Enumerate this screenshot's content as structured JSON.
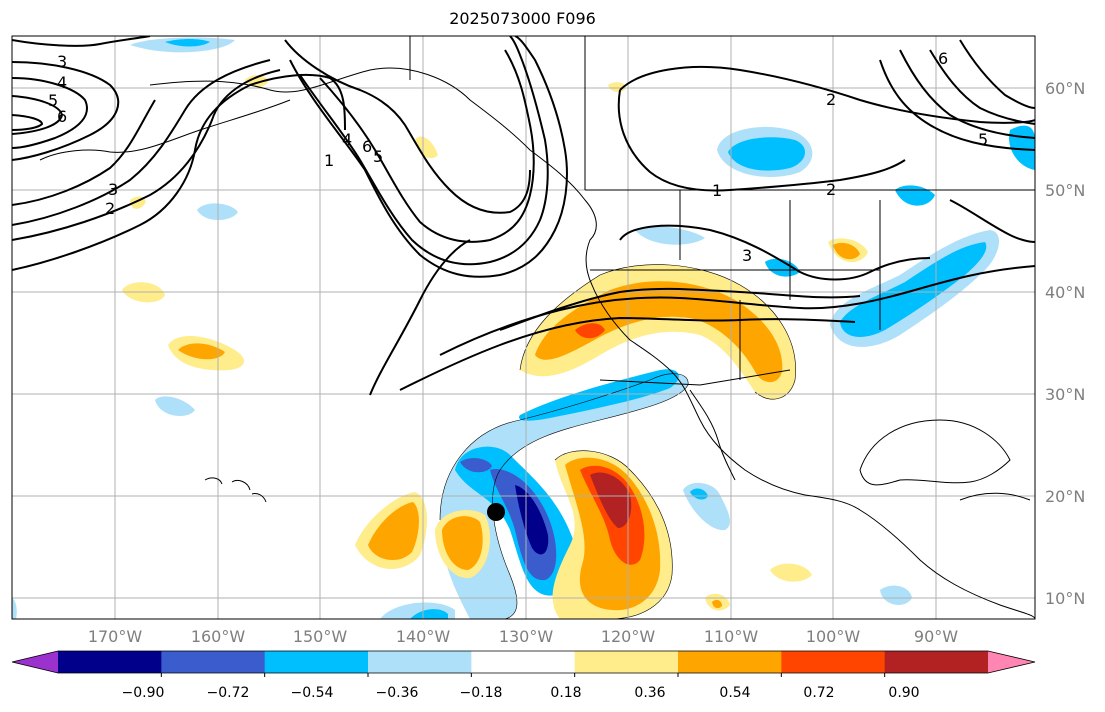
{
  "title": "2025073000 F096",
  "map": {
    "lon_ticks": [
      "170°W",
      "160°W",
      "150°W",
      "140°W",
      "130°W",
      "120°W",
      "110°W",
      "100°W",
      "90°W"
    ],
    "lat_ticks": [
      "60°N",
      "50°N",
      "40°N",
      "30°N",
      "20°N",
      "10°N"
    ],
    "grid": true,
    "projection": "cylindrical",
    "lon_range": [
      -180,
      -80
    ],
    "lat_range": [
      8,
      65
    ]
  },
  "contour_labels": [
    "3",
    "4",
    "5",
    "6",
    "3",
    "2",
    "4",
    "6",
    "5",
    "1",
    "2",
    "1",
    "2",
    "3",
    "6",
    "5"
  ],
  "colorbar": {
    "orientation": "horizontal",
    "extend": "both",
    "tick_labels": [
      "−0.90",
      "−0.72",
      "−0.54",
      "−0.36",
      "−0.18",
      "0.18",
      "0.36",
      "0.54",
      "0.72",
      "0.90"
    ],
    "colors": [
      "#9b32cd",
      "#00008b",
      "#3a5ccc",
      "#00bfff",
      "#aee0fa",
      "#ffffff",
      "#ffec8b",
      "#ffa500",
      "#ff4500",
      "#b22222",
      "#ff86b3"
    ]
  },
  "marker": {
    "label": "storm-position-marker",
    "color": "#000000"
  }
}
